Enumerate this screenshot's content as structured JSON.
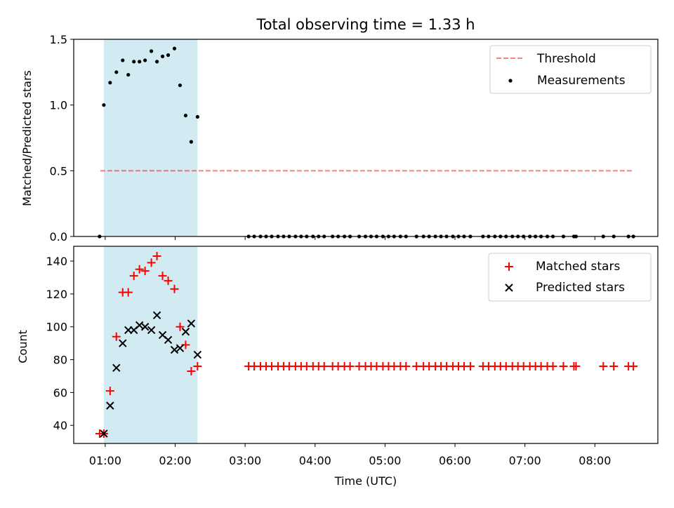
{
  "figure": {
    "title": "Total observing time = 1.33 h",
    "xlabel": "Time (UTC)",
    "x_tick_labels": [
      "01:00",
      "02:00",
      "03:00",
      "04:00",
      "05:00",
      "06:00",
      "07:00",
      "08:00"
    ]
  },
  "colors": {
    "shade": "#add8e6",
    "threshold": "#ff0000",
    "measurement": "#000000",
    "matched": "#ff0000",
    "predicted": "#000000"
  },
  "chart_data": [
    {
      "type": "scatter",
      "panel": "top",
      "ylabel": "Matched/Predicted stars",
      "ylim": [
        0,
        1.5
      ],
      "y_tick_labels": [
        "0.0",
        "0.5",
        "1.0",
        "1.5"
      ],
      "x_unit": "hours UTC",
      "xlim": [
        0.55,
        8.9
      ],
      "shaded_interval": [
        0.98,
        2.32
      ],
      "threshold": {
        "name": "Threshold",
        "x": [
          0.93,
          8.55
        ],
        "y": 0.5,
        "style": "dashed"
      },
      "series": [
        {
          "name": "Measurements",
          "marker": "dot",
          "points": [
            [
              0.92,
              0.0
            ],
            [
              0.98,
              1.0
            ],
            [
              1.07,
              1.17
            ],
            [
              1.16,
              1.25
            ],
            [
              1.25,
              1.34
            ],
            [
              1.33,
              1.23
            ],
            [
              1.41,
              1.33
            ],
            [
              1.49,
              1.33
            ],
            [
              1.57,
              1.34
            ],
            [
              1.66,
              1.41
            ],
            [
              1.74,
              1.33
            ],
            [
              1.82,
              1.37
            ],
            [
              1.9,
              1.38
            ],
            [
              1.99,
              1.43
            ],
            [
              2.07,
              1.15
            ],
            [
              2.15,
              0.92
            ],
            [
              2.23,
              0.72
            ],
            [
              2.32,
              0.91
            ],
            [
              3.05,
              0
            ],
            [
              3.13,
              0
            ],
            [
              3.22,
              0
            ],
            [
              3.3,
              0
            ],
            [
              3.38,
              0
            ],
            [
              3.47,
              0
            ],
            [
              3.55,
              0
            ],
            [
              3.63,
              0
            ],
            [
              3.72,
              0
            ],
            [
              3.8,
              0
            ],
            [
              3.88,
              0
            ],
            [
              3.97,
              0
            ],
            [
              4.05,
              0
            ],
            [
              4.13,
              0
            ],
            [
              4.25,
              0
            ],
            [
              4.33,
              0
            ],
            [
              4.42,
              0
            ],
            [
              4.5,
              0
            ],
            [
              4.63,
              0
            ],
            [
              4.72,
              0
            ],
            [
              4.8,
              0
            ],
            [
              4.88,
              0
            ],
            [
              4.97,
              0
            ],
            [
              5.05,
              0
            ],
            [
              5.13,
              0
            ],
            [
              5.22,
              0
            ],
            [
              5.3,
              0
            ],
            [
              5.45,
              0
            ],
            [
              5.55,
              0
            ],
            [
              5.63,
              0
            ],
            [
              5.72,
              0
            ],
            [
              5.8,
              0
            ],
            [
              5.88,
              0
            ],
            [
              5.97,
              0
            ],
            [
              6.05,
              0
            ],
            [
              6.13,
              0
            ],
            [
              6.22,
              0
            ],
            [
              6.4,
              0
            ],
            [
              6.48,
              0
            ],
            [
              6.57,
              0
            ],
            [
              6.65,
              0
            ],
            [
              6.73,
              0
            ],
            [
              6.82,
              0
            ],
            [
              6.9,
              0
            ],
            [
              6.98,
              0
            ],
            [
              7.07,
              0
            ],
            [
              7.15,
              0
            ],
            [
              7.23,
              0
            ],
            [
              7.32,
              0
            ],
            [
              7.4,
              0
            ],
            [
              7.55,
              0
            ],
            [
              7.7,
              0
            ],
            [
              7.73,
              0
            ],
            [
              8.12,
              0
            ],
            [
              8.27,
              0
            ],
            [
              8.48,
              0
            ],
            [
              8.55,
              0
            ]
          ]
        }
      ]
    },
    {
      "type": "scatter",
      "panel": "bottom",
      "ylabel": "Count",
      "ylim": [
        29,
        149
      ],
      "y_tick_labels": [
        "40",
        "60",
        "80",
        "100",
        "120",
        "140"
      ],
      "x_unit": "hours UTC",
      "xlim": [
        0.55,
        8.9
      ],
      "shaded_interval": [
        0.98,
        2.32
      ],
      "series": [
        {
          "name": "Matched stars",
          "marker": "plus",
          "points": [
            [
              0.92,
              35
            ],
            [
              0.98,
              35
            ],
            [
              1.07,
              61
            ],
            [
              1.16,
              94
            ],
            [
              1.25,
              121
            ],
            [
              1.33,
              121
            ],
            [
              1.41,
              131
            ],
            [
              1.49,
              135
            ],
            [
              1.57,
              134
            ],
            [
              1.66,
              139
            ],
            [
              1.74,
              143
            ],
            [
              1.82,
              131
            ],
            [
              1.9,
              128
            ],
            [
              1.99,
              123
            ],
            [
              2.07,
              100
            ],
            [
              2.15,
              89
            ],
            [
              2.23,
              73
            ],
            [
              2.32,
              76
            ],
            [
              3.05,
              76
            ],
            [
              3.13,
              76
            ],
            [
              3.22,
              76
            ],
            [
              3.3,
              76
            ],
            [
              3.38,
              76
            ],
            [
              3.47,
              76
            ],
            [
              3.55,
              76
            ],
            [
              3.63,
              76
            ],
            [
              3.72,
              76
            ],
            [
              3.8,
              76
            ],
            [
              3.88,
              76
            ],
            [
              3.97,
              76
            ],
            [
              4.05,
              76
            ],
            [
              4.13,
              76
            ],
            [
              4.25,
              76
            ],
            [
              4.33,
              76
            ],
            [
              4.42,
              76
            ],
            [
              4.5,
              76
            ],
            [
              4.63,
              76
            ],
            [
              4.72,
              76
            ],
            [
              4.8,
              76
            ],
            [
              4.88,
              76
            ],
            [
              4.97,
              76
            ],
            [
              5.05,
              76
            ],
            [
              5.13,
              76
            ],
            [
              5.22,
              76
            ],
            [
              5.3,
              76
            ],
            [
              5.45,
              76
            ],
            [
              5.55,
              76
            ],
            [
              5.63,
              76
            ],
            [
              5.72,
              76
            ],
            [
              5.8,
              76
            ],
            [
              5.88,
              76
            ],
            [
              5.97,
              76
            ],
            [
              6.05,
              76
            ],
            [
              6.13,
              76
            ],
            [
              6.22,
              76
            ],
            [
              6.4,
              76
            ],
            [
              6.48,
              76
            ],
            [
              6.57,
              76
            ],
            [
              6.65,
              76
            ],
            [
              6.73,
              76
            ],
            [
              6.82,
              76
            ],
            [
              6.9,
              76
            ],
            [
              6.98,
              76
            ],
            [
              7.07,
              76
            ],
            [
              7.15,
              76
            ],
            [
              7.23,
              76
            ],
            [
              7.32,
              76
            ],
            [
              7.4,
              76
            ],
            [
              7.55,
              76
            ],
            [
              7.7,
              76
            ],
            [
              7.73,
              76
            ],
            [
              8.12,
              76
            ],
            [
              8.27,
              76
            ],
            [
              8.48,
              76
            ],
            [
              8.55,
              76
            ]
          ]
        },
        {
          "name": "Predicted stars",
          "marker": "x",
          "points": [
            [
              0.98,
              35
            ],
            [
              1.07,
              52
            ],
            [
              1.16,
              75
            ],
            [
              1.25,
              90
            ],
            [
              1.33,
              98
            ],
            [
              1.41,
              98
            ],
            [
              1.49,
              101
            ],
            [
              1.57,
              100
            ],
            [
              1.66,
              98
            ],
            [
              1.74,
              107
            ],
            [
              1.82,
              95
            ],
            [
              1.9,
              92
            ],
            [
              1.99,
              86
            ],
            [
              2.07,
              87
            ],
            [
              2.15,
              97
            ],
            [
              2.23,
              102
            ],
            [
              2.32,
              83
            ]
          ]
        }
      ]
    }
  ]
}
